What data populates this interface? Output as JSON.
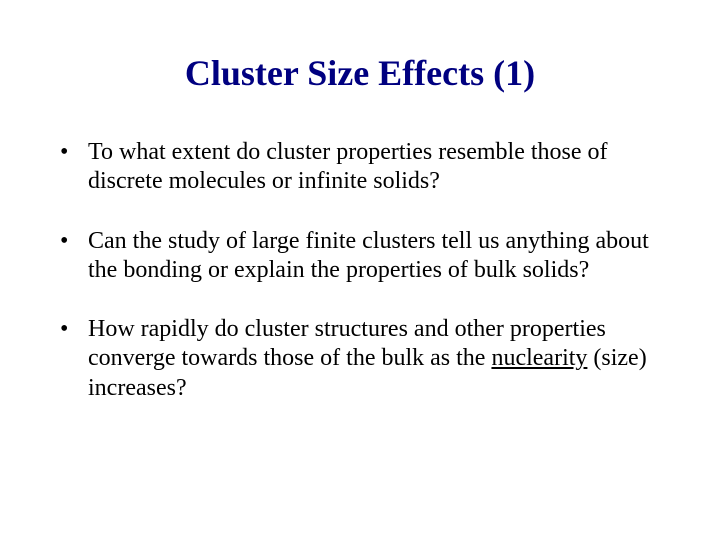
{
  "slide": {
    "title": "Cluster Size Effects (1)",
    "title_color": "#000080",
    "title_fontsize": 36,
    "body_fontsize": 24,
    "text_color": "#000000",
    "background_color": "#ffffff",
    "bullets": [
      {
        "pre": "To what extent do cluster properties resemble those of discrete molecules or infinite solids?",
        "u": "",
        "post": ""
      },
      {
        "pre": "Can the study of large finite clusters tell us anything about the bonding or explain the properties of bulk solids?",
        "u": "",
        "post": ""
      },
      {
        "pre": "How rapidly do cluster structures and other properties converge towards those of the bulk as the ",
        "u": "nuclearity",
        "post": " (size) increases?"
      }
    ]
  }
}
